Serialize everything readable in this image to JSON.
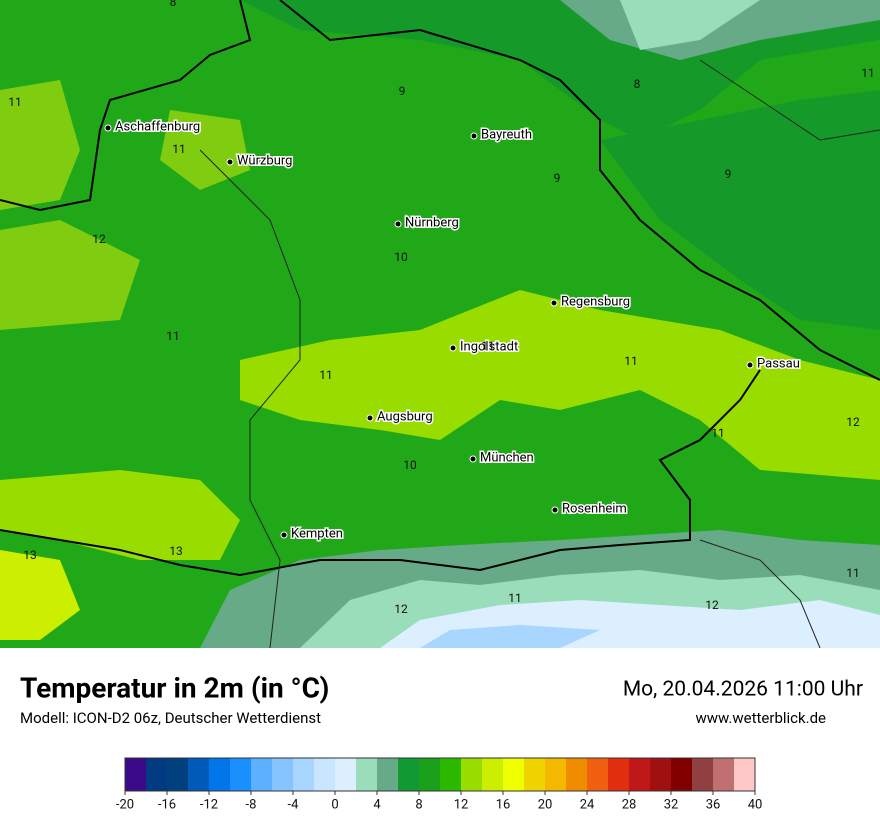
{
  "map": {
    "cities": [
      "Aschaffenburg",
      "Würzburg",
      "Bayreuth",
      "Nürnberg",
      "Regensburg",
      "Ingolstadt",
      "Passau",
      "Augsburg",
      "München",
      "Rosenheim",
      "Kempten"
    ],
    "value_labels": [
      8,
      9,
      8,
      11,
      11,
      11,
      9,
      9,
      12,
      10,
      11,
      11,
      11,
      11,
      12,
      11,
      10,
      13,
      13,
      11,
      12,
      11,
      12
    ]
  },
  "header": {
    "title": "Temperatur in 2m (in °C)",
    "subtitle": "Modell: ICON-D2 06z, Deutscher Wetterdienst",
    "date": "Mo, 20.04.2026 11:00 Uhr",
    "website": "www.wetterblick.de"
  },
  "legend": {
    "lim": [
      -20,
      40
    ],
    "ticks": [
      -20,
      -16,
      -12,
      -8,
      -4,
      0,
      4,
      8,
      12,
      16,
      20,
      24,
      28,
      32,
      36,
      40
    ],
    "colors": [
      "#3a0a8a",
      "#003a80",
      "#00407f",
      "#005ab8",
      "#0076e8",
      "#1a90ff",
      "#5cb0ff",
      "#86c4ff",
      "#a8d6ff",
      "#c8e6ff",
      "#dcefff",
      "#99ddbb",
      "#66aa88",
      "#119933",
      "#1aa01a",
      "#2db800",
      "#99dd00",
      "#ccee00",
      "#eeff00",
      "#f0d400",
      "#f5b800",
      "#f08c00",
      "#f06010",
      "#e03010",
      "#c01818",
      "#a01010",
      "#800000",
      "#904040",
      "#c07070",
      "#ffc8c8"
    ]
  }
}
